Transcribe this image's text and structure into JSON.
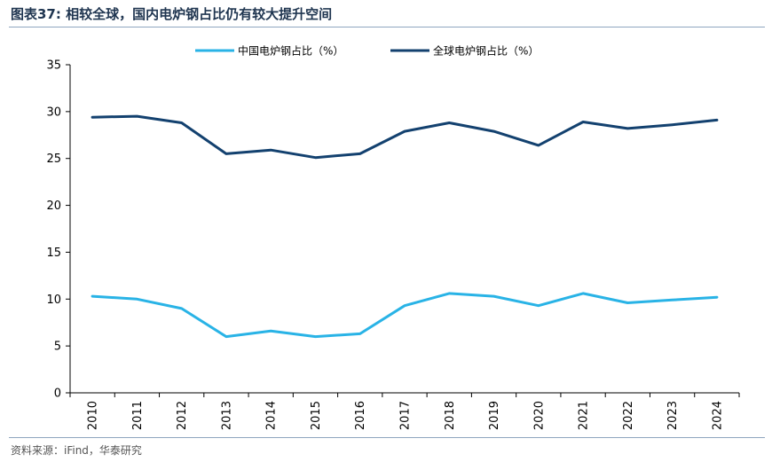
{
  "header": {
    "title": "图表37:  相较全球，国内电炉钢占比仍有较大提升空间"
  },
  "footer": {
    "source": "资料来源：iFind，华泰研究"
  },
  "colors": {
    "china": "#29b3e6",
    "global": "#13416f",
    "axis": "#000000"
  },
  "chart_data": {
    "type": "line",
    "title": "",
    "xlabel": "",
    "ylabel": "",
    "categories": [
      "2010",
      "2011",
      "2012",
      "2013",
      "2014",
      "2015",
      "2016",
      "2017",
      "2018",
      "2019",
      "2020",
      "2021",
      "2022",
      "2023",
      "2024"
    ],
    "ylim": [
      0,
      35
    ],
    "yticks": [
      "0",
      "5",
      "10",
      "15",
      "20",
      "25",
      "30",
      "35"
    ],
    "grid": false,
    "legend": "top-center",
    "series": [
      {
        "name": "中国电炉钢占比（%）",
        "color": "#29b3e6",
        "values": [
          10.3,
          10.0,
          9.0,
          6.0,
          6.6,
          6.0,
          6.3,
          9.3,
          10.6,
          10.3,
          9.3,
          10.6,
          9.6,
          9.9,
          10.2
        ]
      },
      {
        "name": "全球电炉钢占比（%）",
        "color": "#13416f",
        "values": [
          29.4,
          29.5,
          28.8,
          25.5,
          25.9,
          25.1,
          25.5,
          27.9,
          28.8,
          27.9,
          26.4,
          28.9,
          28.2,
          28.6,
          29.1
        ]
      }
    ]
  }
}
